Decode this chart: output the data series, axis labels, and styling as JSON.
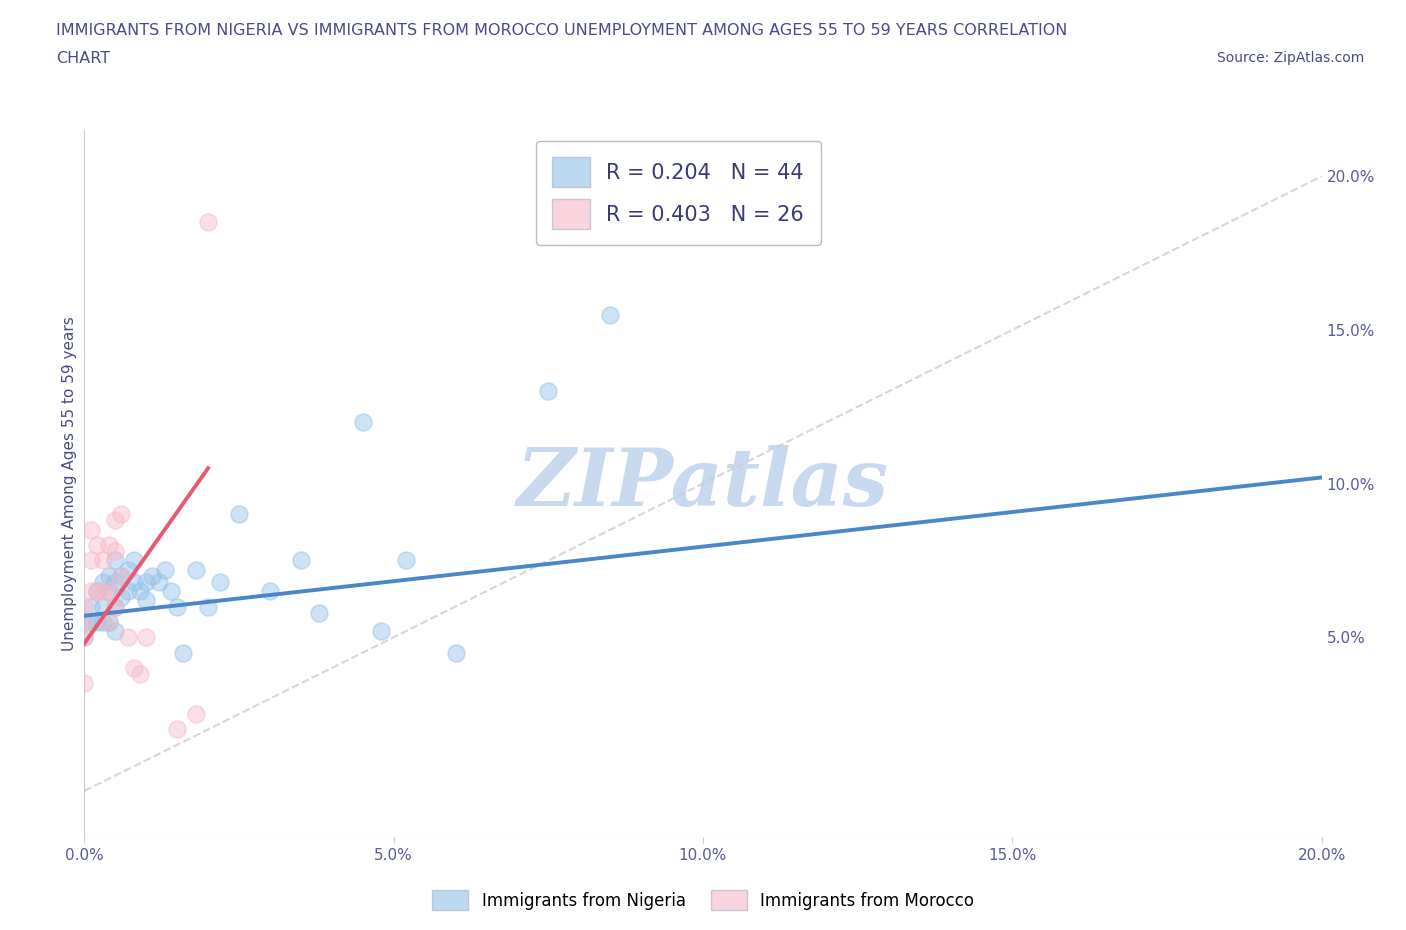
{
  "title_line1": "IMMIGRANTS FROM NIGERIA VS IMMIGRANTS FROM MOROCCO UNEMPLOYMENT AMONG AGES 55 TO 59 YEARS CORRELATION",
  "title_line2": "CHART",
  "source": "Source: ZipAtlas.com",
  "ylabel": "Unemployment Among Ages 55 to 59 years",
  "legend_nigeria": "Immigrants from Nigeria",
  "legend_morocco": "Immigrants from Morocco",
  "R_nigeria": "0.204",
  "N_nigeria": "44",
  "R_morocco": "0.403",
  "N_morocco": "26",
  "color_nigeria": "#92c0e8",
  "color_morocco": "#f5b8c8",
  "color_line_nigeria": "#4a86c8",
  "color_line_morocco": "#e85870",
  "color_diagonal": "#cccccc",
  "title_color": "#4a4a8a",
  "watermark_color": "#c8d8ee",
  "nigeria_x": [
    0.0,
    0.0,
    0.001,
    0.001,
    0.002,
    0.002,
    0.003,
    0.003,
    0.003,
    0.004,
    0.004,
    0.004,
    0.005,
    0.005,
    0.005,
    0.005,
    0.006,
    0.006,
    0.007,
    0.007,
    0.008,
    0.008,
    0.009,
    0.01,
    0.01,
    0.011,
    0.012,
    0.013,
    0.014,
    0.015,
    0.016,
    0.018,
    0.02,
    0.022,
    0.025,
    0.03,
    0.035,
    0.038,
    0.045,
    0.048,
    0.052,
    0.06,
    0.075,
    0.085
  ],
  "nigeria_y": [
    0.055,
    0.05,
    0.06,
    0.055,
    0.065,
    0.055,
    0.068,
    0.06,
    0.055,
    0.07,
    0.065,
    0.055,
    0.075,
    0.068,
    0.06,
    0.052,
    0.07,
    0.063,
    0.072,
    0.065,
    0.075,
    0.068,
    0.065,
    0.068,
    0.062,
    0.07,
    0.068,
    0.072,
    0.065,
    0.06,
    0.045,
    0.072,
    0.06,
    0.068,
    0.09,
    0.065,
    0.075,
    0.058,
    0.12,
    0.052,
    0.075,
    0.045,
    0.13,
    0.155
  ],
  "morocco_x": [
    0.0,
    0.0,
    0.0,
    0.0,
    0.001,
    0.001,
    0.001,
    0.002,
    0.002,
    0.003,
    0.003,
    0.004,
    0.004,
    0.004,
    0.005,
    0.005,
    0.005,
    0.006,
    0.006,
    0.007,
    0.008,
    0.009,
    0.01,
    0.015,
    0.018,
    0.02
  ],
  "morocco_y": [
    0.06,
    0.055,
    0.05,
    0.035,
    0.085,
    0.075,
    0.065,
    0.08,
    0.065,
    0.075,
    0.065,
    0.08,
    0.065,
    0.055,
    0.088,
    0.078,
    0.06,
    0.09,
    0.07,
    0.05,
    0.04,
    0.038,
    0.05,
    0.02,
    0.025,
    0.185
  ],
  "xlim": [
    0.0,
    0.2
  ],
  "ylim": [
    -0.015,
    0.215
  ],
  "xticks": [
    0.0,
    0.05,
    0.1,
    0.15,
    0.2
  ],
  "yticks_right": [
    0.05,
    0.1,
    0.15,
    0.2
  ],
  "nigeria_line_x": [
    0.0,
    0.2
  ],
  "nigeria_line_y": [
    0.057,
    0.102
  ],
  "morocco_line_x": [
    0.0,
    0.02
  ],
  "morocco_line_y": [
    0.048,
    0.105
  ]
}
